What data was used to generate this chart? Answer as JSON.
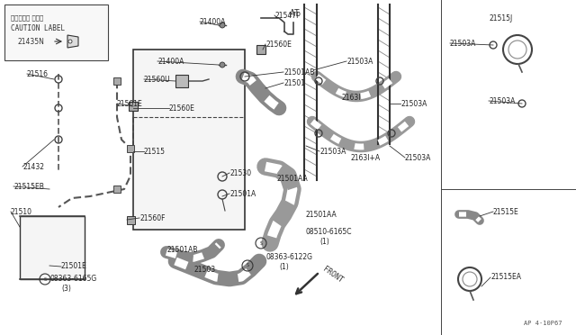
{
  "bg_color": "#ffffff",
  "line_color": "#333333",
  "text_color": "#333333",
  "diagram_number": "AP 4·10P67",
  "caution_jp": "コーション ラベル",
  "caution_en": "CAUTION LABEL",
  "caution_part": "21435N"
}
